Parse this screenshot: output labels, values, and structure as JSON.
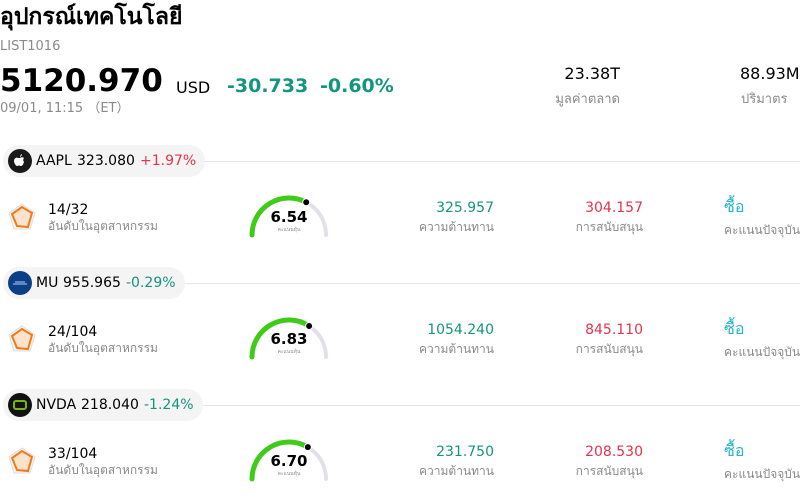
{
  "header": {
    "title": "อุปกรณ์เทคโนโลยี",
    "code": "LIST1016",
    "price": "5120.970",
    "currency": "USD",
    "change": "-30.733",
    "change_percent": "-0.60%",
    "time": "09/01, 11:15 （ET）"
  },
  "stats": [
    {
      "value": "23.38T",
      "label": "มูลค่าตลาด"
    },
    {
      "value": "88.93M",
      "label": "ปริมาตร"
    }
  ],
  "gauge_range": [
    0,
    10
  ],
  "stocks": [
    {
      "ticker": "AAPL",
      "price": "323.080",
      "change": "+1.97%",
      "rank": "14/32",
      "rank_label": "อันดับในอุตสาหกรรม",
      "score": "6.54",
      "score_label": "คะแนนหุ้น",
      "resistance": "325.957",
      "resistance_label": "ความต้านทาน",
      "support": "304.157",
      "support_label": "การสนับสนุน",
      "rating": "ซื้อ",
      "rating_label": "คะแนนปัจจุบัน"
    },
    {
      "ticker": "MU",
      "price": "955.965",
      "change": "-0.29%",
      "rank": "24/104",
      "rank_label": "อันดับในอุตสาหกรรม",
      "score": "6.83",
      "score_label": "คะแนนหุ้น",
      "resistance": "1054.240",
      "resistance_label": "ความต้านทาน",
      "support": "845.110",
      "support_label": "การสนับสนุน",
      "rating": "ซื้อ",
      "rating_label": "คะแนนปัจจุบัน"
    },
    {
      "ticker": "NVDA",
      "price": "218.040",
      "change": "-1.24%",
      "rank": "33/104",
      "rank_label": "อันดับในอุตสาหกรรม",
      "score": "6.70",
      "score_label": "คะแนนหุ้น",
      "resistance": "231.750",
      "resistance_label": "ความต้านทาน",
      "support": "208.530",
      "support_label": "การสนับสนุน",
      "rating": "ซื้อ",
      "rating_label": "คะแนนปัจจุบัน"
    }
  ]
}
